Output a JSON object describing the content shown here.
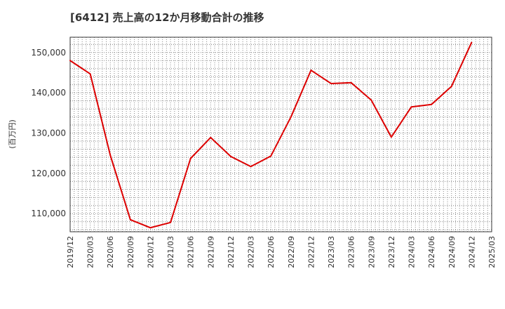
{
  "chart_data": {
    "type": "line",
    "title": "[6412]  売上高の12か月移動合計の推移",
    "ylabel": "(百万円)",
    "xlabel": "",
    "categories": [
      "2019/12",
      "2020/03",
      "2020/06",
      "2020/09",
      "2020/12",
      "2021/03",
      "2021/06",
      "2021/09",
      "2021/12",
      "2022/03",
      "2022/06",
      "2022/09",
      "2022/12",
      "2023/03",
      "2023/06",
      "2023/09",
      "2023/12",
      "2024/03",
      "2024/06",
      "2024/09",
      "2024/12",
      "2025/03"
    ],
    "series": [
      {
        "name": "売上高",
        "color": "#dd0000",
        "values": [
          148000,
          144700,
          124500,
          108500,
          106500,
          107800,
          123700,
          128900,
          124200,
          121700,
          124300,
          134000,
          145600,
          142300,
          142500,
          138200,
          129000,
          136500,
          137100,
          141600,
          152500,
          null
        ]
      }
    ],
    "yticks": [
      110000,
      120000,
      130000,
      140000,
      150000
    ],
    "ytick_labels": [
      "110,000",
      "120,000",
      "130,000",
      "140,000",
      "150,000"
    ],
    "ylim": [
      105500,
      153800
    ],
    "grid": true
  }
}
